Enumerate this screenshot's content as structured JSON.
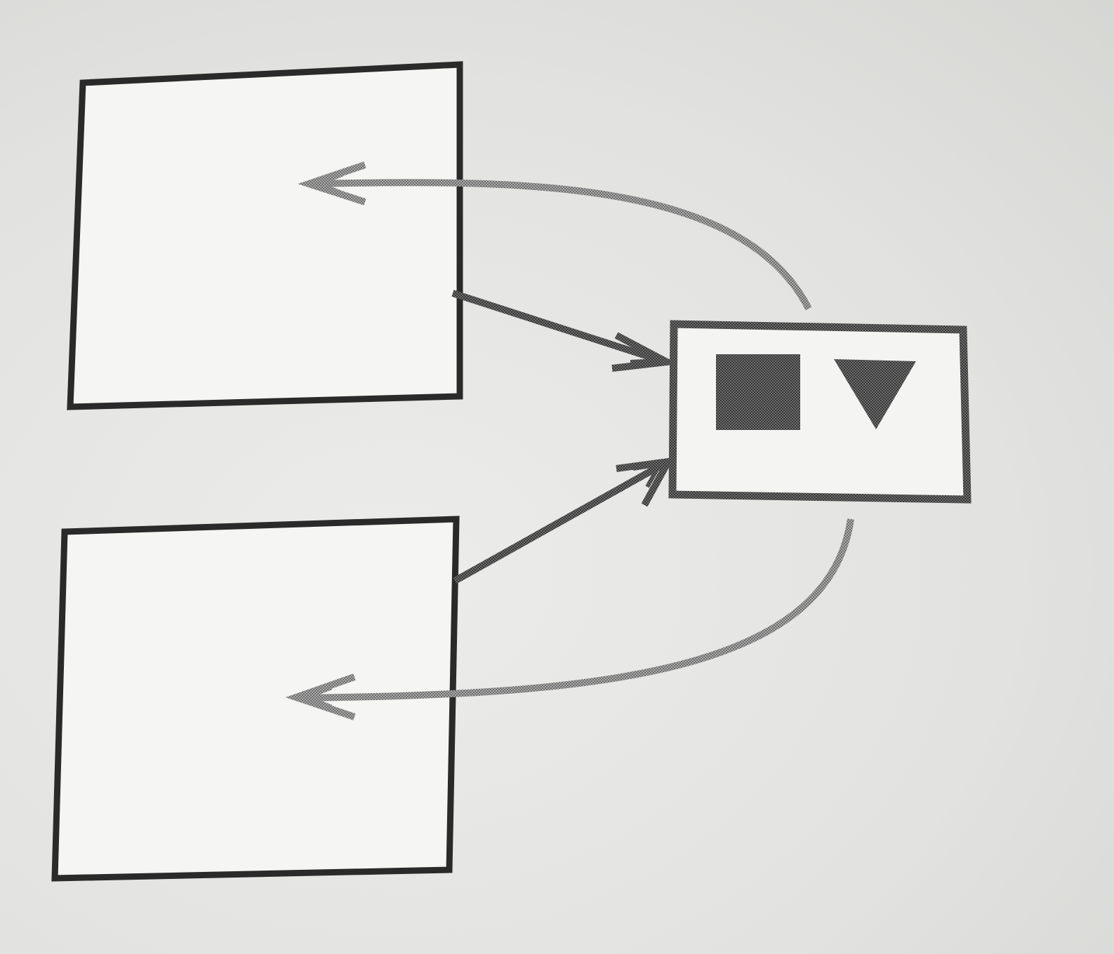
{
  "diagram": {
    "nodes": [
      {
        "id": "object-top",
        "shape": "rectangle",
        "label": ""
      },
      {
        "id": "object-bottom",
        "shape": "rectangle",
        "label": ""
      },
      {
        "id": "shared-prototype",
        "shape": "rectangle",
        "label": "",
        "contents": [
          "filled-square",
          "filled-down-triangle"
        ]
      }
    ],
    "edges": [
      {
        "from": "object-top",
        "to": "shared-prototype",
        "style": "straight",
        "head": "open-double"
      },
      {
        "from": "object-bottom",
        "to": "shared-prototype",
        "style": "straight",
        "head": "open-double"
      },
      {
        "from": "shared-prototype",
        "to": "object-top",
        "style": "curved",
        "head": "open-double"
      },
      {
        "from": "shared-prototype",
        "to": "object-bottom",
        "style": "curved",
        "head": "open-double"
      }
    ],
    "colors": {
      "box_stroke": "#2a2a2a",
      "arrow": "#555555",
      "curve_arrow": "#8a8a8a",
      "shape_fill": "#5a5a5a"
    }
  },
  "background_text": {
    "lines": [
      "",
      "",
      "",
      "",
      ""
    ]
  }
}
